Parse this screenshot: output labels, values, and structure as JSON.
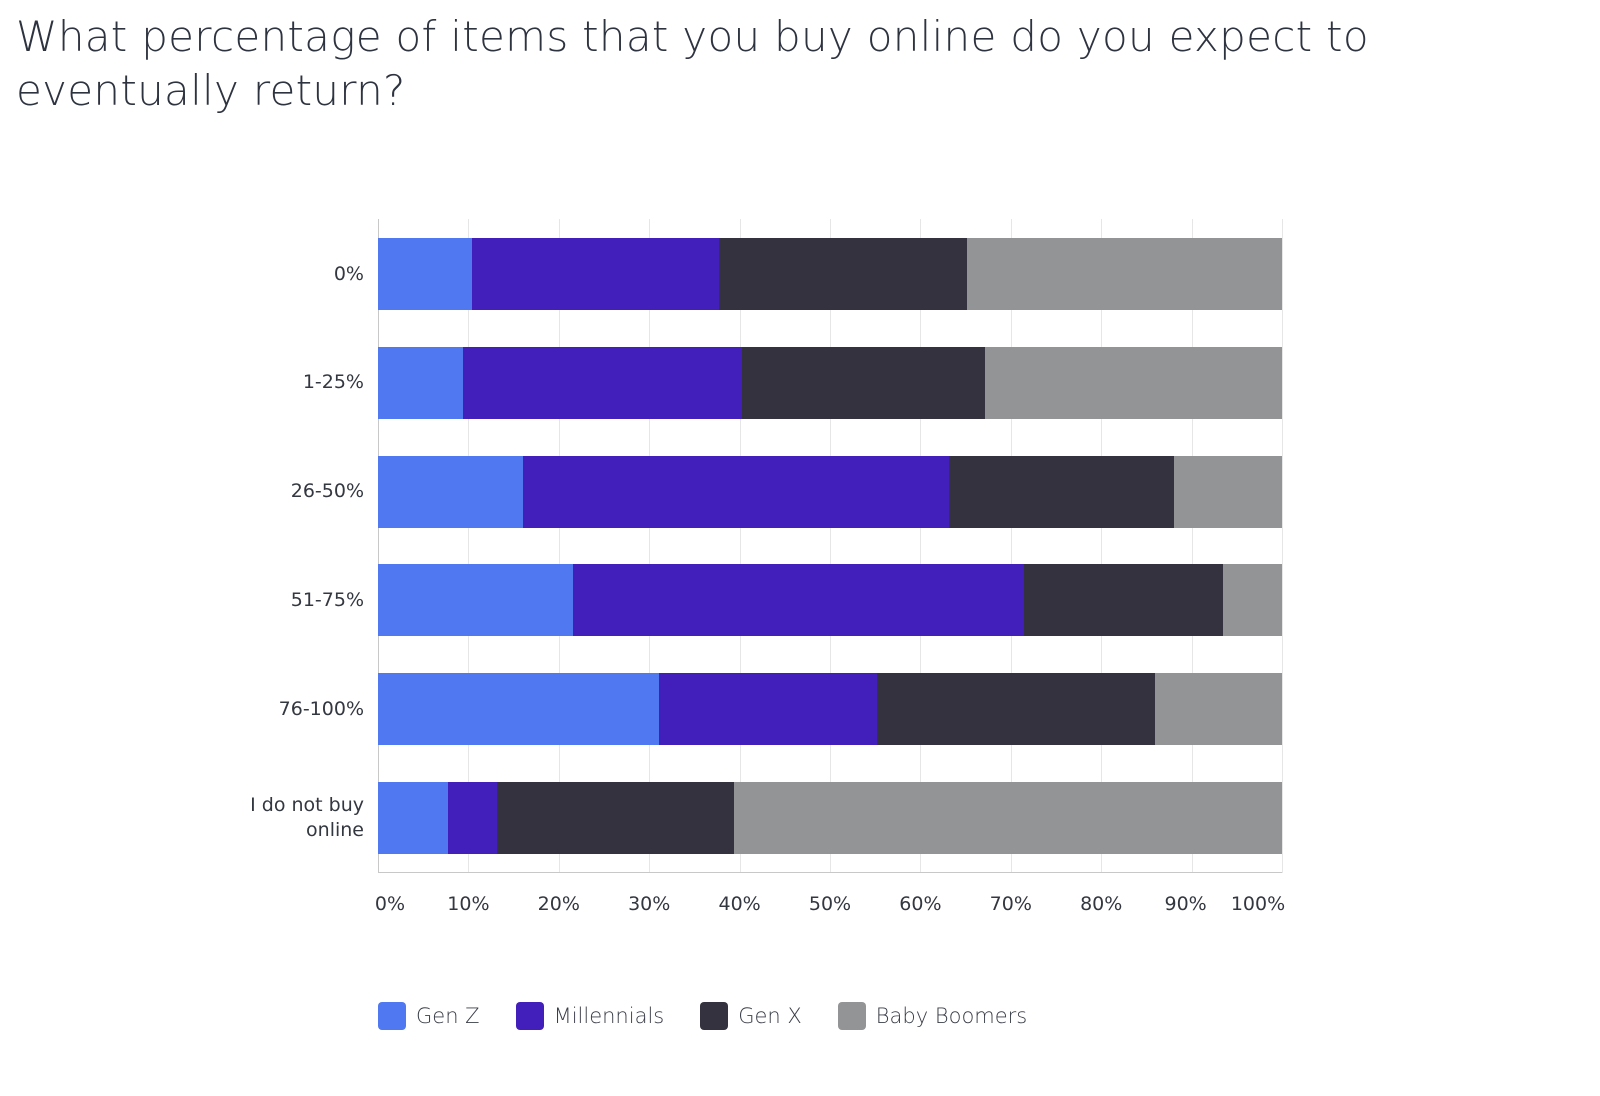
{
  "title": "What percentage of items that you buy online do you expect to eventually return?",
  "chart_data": {
    "type": "bar",
    "orientation": "horizontal",
    "stacked": true,
    "normalized": true,
    "title": "What percentage of items that you buy online do you expect to eventually return?",
    "xlabel": "",
    "ylabel": "",
    "xlim": [
      0,
      100
    ],
    "x_ticks": [
      "0%",
      "10%",
      "20%",
      "30%",
      "40%",
      "50%",
      "60%",
      "70%",
      "80%",
      "90%",
      "100%"
    ],
    "categories": [
      "0%",
      "1-25%",
      "26-50%",
      "51-75%",
      "76-100%",
      "I do not buy online"
    ],
    "series": [
      {
        "name": "Gen Z",
        "color": "#4f78f1",
        "values": [
          10.4,
          9.4,
          16.0,
          21.6,
          31.1,
          7.7
        ]
      },
      {
        "name": "Millennials",
        "color": "#421fba",
        "values": [
          27.3,
          30.9,
          47.2,
          49.9,
          24.1,
          5.5
        ]
      },
      {
        "name": "Gen X",
        "color": "#33323e",
        "values": [
          27.5,
          26.9,
          24.8,
          22.0,
          30.8,
          26.2
        ]
      },
      {
        "name": "Baby Boomers",
        "color": "#939495",
        "values": [
          34.8,
          32.8,
          12.0,
          6.5,
          14.0,
          60.6
        ]
      }
    ],
    "grid": true,
    "legend_position": "bottom"
  }
}
